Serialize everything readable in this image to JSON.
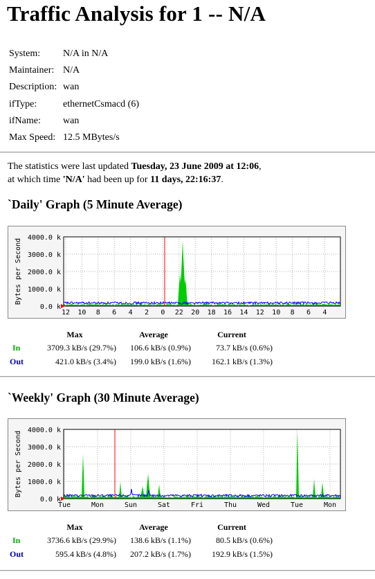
{
  "title": "Traffic Analysis for 1 -- N/A",
  "info": [
    {
      "label": "System:",
      "value": "N/A in N/A"
    },
    {
      "label": "Maintainer:",
      "value": "N/A"
    },
    {
      "label": "Description:",
      "value": "wan"
    },
    {
      "label": "ifType:",
      "value": "ethernetCsmacd (6)"
    },
    {
      "label": "ifName:",
      "value": "wan"
    },
    {
      "label": "Max Speed:",
      "value": "12.5 MBytes/s"
    }
  ],
  "stats": {
    "line1_prefix": "The statistics were last updated ",
    "line1_date": "Tuesday, 23 June 2009 at 12:06",
    "line1_suffix": ",",
    "line2_prefix": "at which time ",
    "line2_name": "'N/A'",
    "line2_mid": " had been up for ",
    "line2_uptime": "11 days, 22:16:37",
    "line2_suffix": "."
  },
  "colors": {
    "in": "#00cc00",
    "out": "#0000ff",
    "current_marker": "#ff0000",
    "grid": "#b0b0b0"
  },
  "sections": [
    {
      "heading": "`Daily' Graph (5 Minute Average)",
      "ylabel": "Bytes per Second",
      "headers": [
        "Max",
        "Average",
        "Current"
      ],
      "rows": [
        {
          "label": "In",
          "max": "3709.3 kB/s (29.7%)",
          "avg": "106.6 kB/s (0.9%)",
          "cur": "73.7 kB/s (0.6%)"
        },
        {
          "label": "Out",
          "max": "421.0 kB/s (3.4%)",
          "avg": "199.0 kB/s (1.6%)",
          "cur": "162.1 kB/s (1.3%)"
        }
      ]
    },
    {
      "heading": "`Weekly' Graph (30 Minute Average)",
      "ylabel": "Bytes per Second",
      "headers": [
        "Max",
        "Average",
        "Current"
      ],
      "rows": [
        {
          "label": "In",
          "max": "3736.6 kB/s (29.9%)",
          "avg": "138.6 kB/s (1.1%)",
          "cur": "80.5 kB/s (0.6%)"
        },
        {
          "label": "Out",
          "max": "595.4 kB/s (4.8%)",
          "avg": "207.2 kB/s (1.7%)",
          "cur": "192.9 kB/s (1.5%)"
        }
      ]
    }
  ],
  "chart_data": [
    {
      "type": "area",
      "title": "`Daily' Graph (5 Minute Average)",
      "ylabel": "Bytes per Second",
      "ylim": [
        0,
        4000
      ],
      "y_ticks": [
        "0.0 k",
        "1000.0 k",
        "2000.0 k",
        "3000.0 k",
        "4000.0 k"
      ],
      "x_ticks": [
        "12",
        "10",
        "8",
        "6",
        "4",
        "2",
        "0",
        "22",
        "20",
        "18",
        "16",
        "14",
        "12",
        "10",
        "8",
        "6",
        "4"
      ],
      "current_marker_hour": 0,
      "grid": true,
      "series": [
        {
          "name": "In",
          "peak": 3709.3,
          "peak_hour": 22,
          "baseline": 100
        },
        {
          "name": "Out",
          "peak": 421.0,
          "baseline": 200
        }
      ]
    },
    {
      "type": "area",
      "title": "`Weekly' Graph (30 Minute Average)",
      "ylabel": "Bytes per Second",
      "ylim": [
        0,
        4000
      ],
      "y_ticks": [
        "0.0 k",
        "1000.0 k",
        "2000.0 k",
        "3000.0 k",
        "4000.0 k"
      ],
      "x_ticks": [
        "Tue",
        "Mon",
        "Sun",
        "Sat",
        "Fri",
        "Thu",
        "Wed",
        "Tue",
        "Mon"
      ],
      "grid": true,
      "series": [
        {
          "name": "In",
          "peak": 3736.6,
          "peak_day": "Tue",
          "baseline": 130
        },
        {
          "name": "Out",
          "peak": 595.4,
          "baseline": 200
        }
      ]
    }
  ]
}
